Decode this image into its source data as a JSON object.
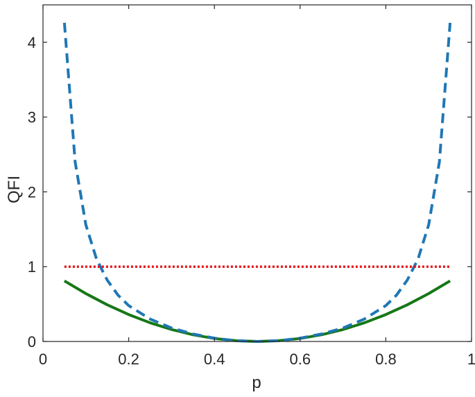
{
  "chart_data": {
    "type": "line",
    "title": "",
    "xlabel": "p",
    "ylabel": "QFI",
    "xlim": [
      0,
      1
    ],
    "ylim": [
      0,
      4.5
    ],
    "xticks": [
      0,
      0.2,
      0.4,
      0.6,
      0.8,
      1
    ],
    "xtick_labels": [
      "0",
      "0.2",
      "0.4",
      "0.6",
      "0.8",
      "1"
    ],
    "yticks": [
      0,
      1,
      2,
      3,
      4
    ],
    "ytick_labels": [
      "0",
      "1",
      "2",
      "3",
      "4"
    ],
    "grid": false,
    "legend": "none",
    "series": [
      {
        "style": "solid",
        "color": "#167716",
        "x": [
          0.05,
          0.1,
          0.15,
          0.2,
          0.25,
          0.3,
          0.35,
          0.4,
          0.45,
          0.5,
          0.55,
          0.6,
          0.65,
          0.7,
          0.75,
          0.8,
          0.85,
          0.9,
          0.95
        ],
        "y": [
          0.81,
          0.64,
          0.49,
          0.36,
          0.25,
          0.16,
          0.09,
          0.04,
          0.01,
          0.0,
          0.01,
          0.04,
          0.09,
          0.16,
          0.25,
          0.36,
          0.49,
          0.64,
          0.81
        ]
      },
      {
        "style": "dashed",
        "color": "#1f77b4",
        "x": [
          0.05,
          0.075,
          0.1,
          0.125,
          0.15,
          0.175,
          0.2,
          0.25,
          0.3,
          0.35,
          0.4,
          0.45,
          0.5,
          0.55,
          0.6,
          0.65,
          0.7,
          0.75,
          0.8,
          0.825,
          0.85,
          0.875,
          0.9,
          0.925,
          0.95
        ],
        "y": [
          4.26,
          2.4,
          1.56,
          1.1,
          0.82,
          0.62,
          0.48,
          0.3,
          0.18,
          0.1,
          0.044,
          0.011,
          0.0,
          0.011,
          0.044,
          0.1,
          0.18,
          0.3,
          0.48,
          0.62,
          0.82,
          1.1,
          1.56,
          2.4,
          4.26
        ]
      },
      {
        "style": "dotted",
        "color": "#e31a1c",
        "x": [
          0.05,
          0.95
        ],
        "y": [
          1.0,
          1.0
        ]
      }
    ]
  }
}
